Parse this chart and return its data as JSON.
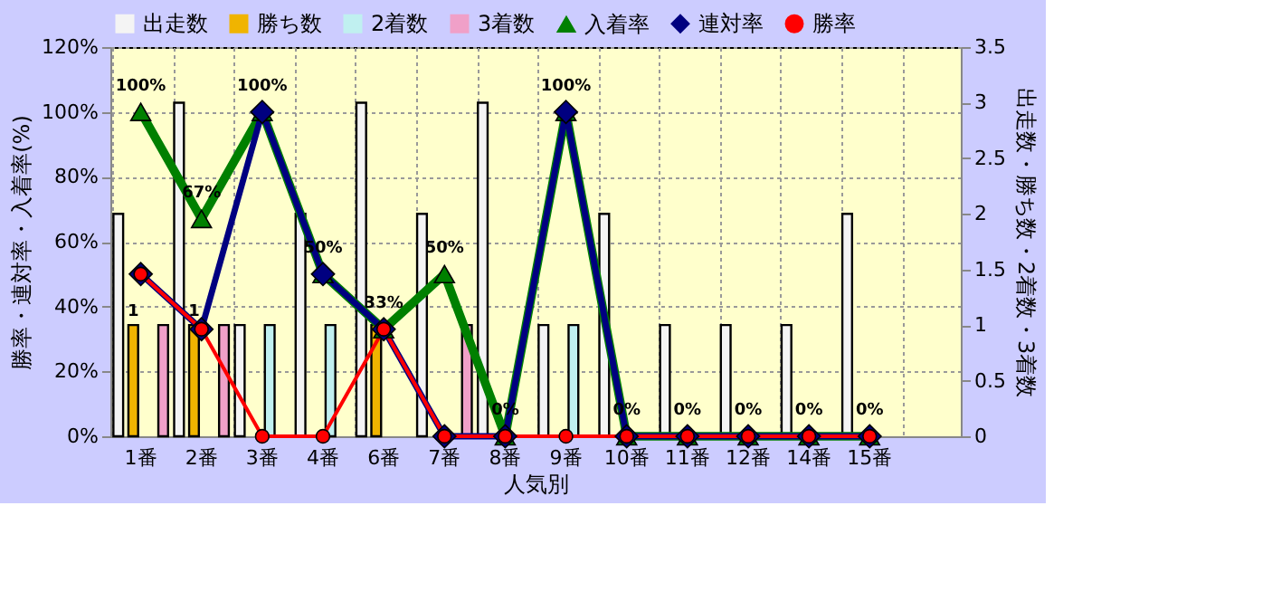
{
  "chart_data": {
    "type": "bar",
    "xlabel": "人気別",
    "ylabel": "勝率・連対率・入着率(%)",
    "y2label": "出走数・勝ち数・2着数・3着数",
    "categories": [
      "1番",
      "2番",
      "3番",
      "4番",
      "6番",
      "7番",
      "8番",
      "9番",
      "10番",
      "11番",
      "12番",
      "14番",
      "15番",
      null
    ],
    "ylim": [
      0,
      120
    ],
    "yticks": [
      {
        "value": 0,
        "label": "0%"
      },
      {
        "value": 20,
        "label": "20%"
      },
      {
        "value": 40,
        "label": "40%"
      },
      {
        "value": 60,
        "label": "60%"
      },
      {
        "value": 80,
        "label": "80%"
      },
      {
        "value": 100,
        "label": "100%"
      },
      {
        "value": 120,
        "label": "120%"
      }
    ],
    "y2lim": [
      0,
      3.5
    ],
    "y2ticks": [
      0,
      0.5,
      1,
      1.5,
      2,
      2.5,
      3,
      3.5
    ],
    "grid": true,
    "legend": "top",
    "series": [
      {
        "name": "出走数",
        "axis": "y2",
        "color": "#f4f4f4",
        "values": [
          2,
          3,
          1,
          2,
          3,
          2,
          3,
          1,
          2,
          1,
          1,
          1,
          2,
          null
        ]
      },
      {
        "name": "勝ち数",
        "axis": "y2",
        "color": "#f0b400",
        "values": [
          1,
          1,
          0,
          0,
          1,
          0,
          0,
          0,
          0,
          0,
          0,
          0,
          0,
          null
        ],
        "value_labels": [
          "1",
          "1",
          null,
          null,
          null,
          null,
          null,
          null,
          null,
          null,
          null,
          null,
          null,
          null
        ]
      },
      {
        "name": "2着数",
        "axis": "y2",
        "color": "#c0f0f0",
        "values": [
          0,
          0,
          1,
          1,
          0,
          0,
          0,
          1,
          0,
          0,
          0,
          0,
          0,
          null
        ]
      },
      {
        "name": "3着数",
        "axis": "y2",
        "color": "#f0a0c8",
        "values": [
          1,
          1,
          0,
          0,
          0,
          1,
          0,
          0,
          0,
          0,
          0,
          0,
          0,
          null
        ]
      },
      {
        "name": "入着率",
        "type": "line",
        "color": "#008000",
        "marker": "triangle",
        "values": [
          100,
          67,
          100,
          50,
          33,
          50,
          0,
          100,
          0,
          0,
          0,
          0,
          0,
          null
        ],
        "value_labels": [
          "100%",
          "67%",
          "100%",
          "50%",
          "33%",
          "50%",
          "0%",
          "100%",
          "0%",
          "0%",
          "0%",
          "0%",
          "0%",
          null
        ]
      },
      {
        "name": "連対率",
        "type": "line",
        "color": "#000080",
        "marker": "diamond",
        "values": [
          50,
          33,
          100,
          50,
          33,
          0,
          0,
          100,
          0,
          0,
          0,
          0,
          0,
          null
        ]
      },
      {
        "name": "勝率",
        "type": "line",
        "color": "#ff0000",
        "marker": "circle",
        "values": [
          50,
          33,
          0,
          0,
          33,
          0,
          0,
          0,
          0,
          0,
          0,
          0,
          0,
          null
        ]
      }
    ]
  }
}
